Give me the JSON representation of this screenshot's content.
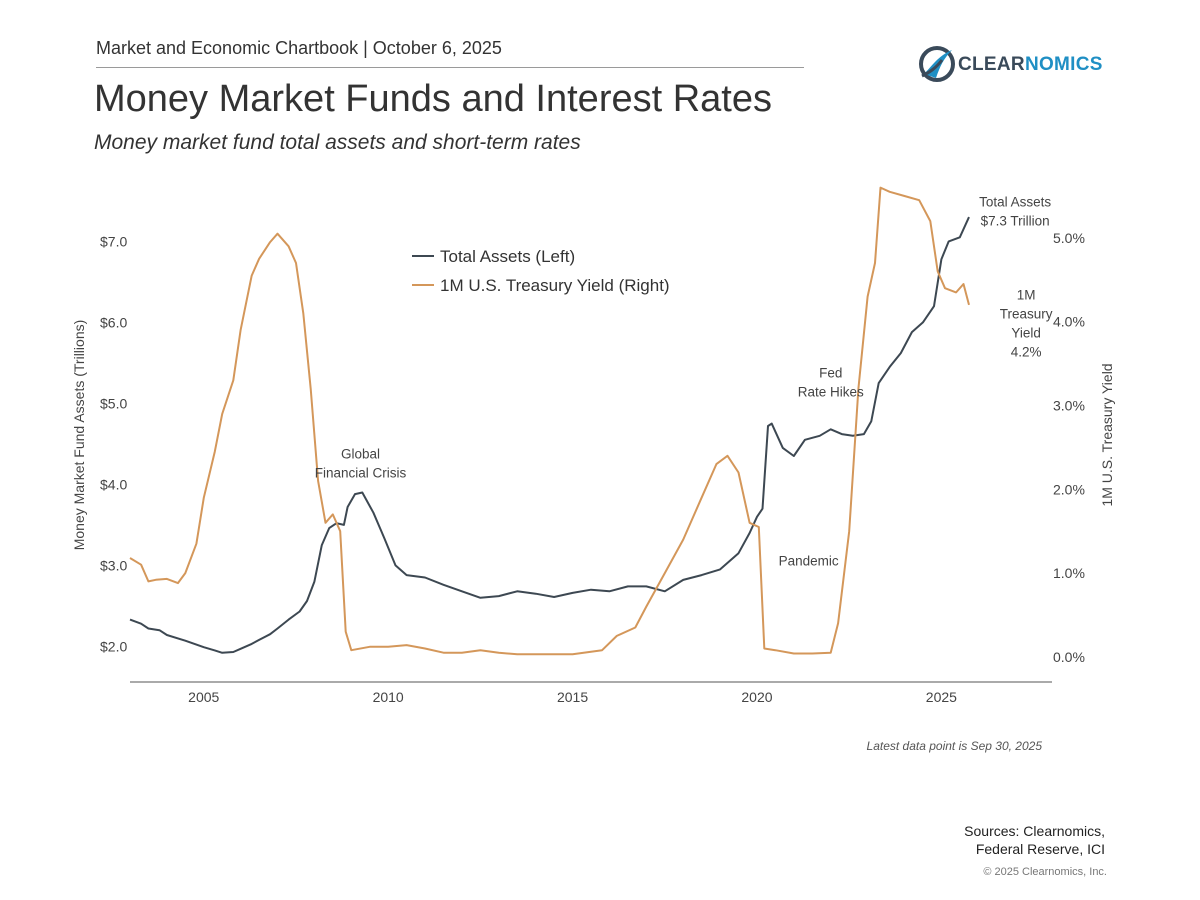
{
  "header": {
    "chartbook": "Market and Economic Chartbook | October 6, 2025",
    "logo_text_1": "CLEAR",
    "logo_text_2": "NOMICS",
    "logo_icon": "clearnomics-swoosh-icon"
  },
  "title": "Money Market Funds and Interest Rates",
  "subtitle": "Money market fund total assets and short-term rates",
  "colors": {
    "assets": "#3d4852",
    "yield": "#d4975a",
    "axis": "#555555",
    "text": "#444444"
  },
  "chart_data": {
    "type": "line",
    "xlim": [
      2003.0,
      2028.0
    ],
    "x_ticks": [
      2005,
      2010,
      2015,
      2020,
      2025
    ],
    "x_tick_labels": [
      "2005",
      "2010",
      "2015",
      "2020",
      "2025"
    ],
    "left_axis": {
      "label": "Money Market Fund Assets (Trillions)",
      "ylim": [
        1.56,
        7.56
      ],
      "ticks": [
        2,
        3,
        4,
        5,
        6,
        7
      ],
      "tick_labels": [
        "$2.0",
        "$3.0",
        "$4.0",
        "$5.0",
        "$6.0",
        "$7.0"
      ]
    },
    "right_axis": {
      "label": "1M U.S. Treasury Yield",
      "ylim": [
        -0.3,
        5.5
      ],
      "ticks": [
        0,
        1,
        2,
        3,
        4,
        5
      ],
      "tick_labels": [
        "0.0%",
        "1.0%",
        "2.0%",
        "3.0%",
        "4.0%",
        "5.0%"
      ]
    },
    "grid": false,
    "legend": {
      "position": "top-center",
      "entries": [
        "Total Assets (Left)",
        "1M U.S. Treasury Yield (Right)"
      ]
    },
    "series": [
      {
        "name": "Total Assets (Left)",
        "axis": "left",
        "points": [
          [
            2003.0,
            2.33
          ],
          [
            2003.3,
            2.28
          ],
          [
            2003.5,
            2.22
          ],
          [
            2003.8,
            2.2
          ],
          [
            2004.0,
            2.14
          ],
          [
            2004.5,
            2.07
          ],
          [
            2005.0,
            1.99
          ],
          [
            2005.3,
            1.95
          ],
          [
            2005.5,
            1.92
          ],
          [
            2005.8,
            1.93
          ],
          [
            2006.0,
            1.97
          ],
          [
            2006.3,
            2.03
          ],
          [
            2006.5,
            2.08
          ],
          [
            2006.8,
            2.15
          ],
          [
            2007.0,
            2.22
          ],
          [
            2007.3,
            2.33
          ],
          [
            2007.6,
            2.43
          ],
          [
            2007.8,
            2.56
          ],
          [
            2008.0,
            2.8
          ],
          [
            2008.2,
            3.25
          ],
          [
            2008.4,
            3.46
          ],
          [
            2008.6,
            3.52
          ],
          [
            2008.8,
            3.5
          ],
          [
            2008.9,
            3.72
          ],
          [
            2009.1,
            3.88
          ],
          [
            2009.3,
            3.9
          ],
          [
            2009.6,
            3.65
          ],
          [
            2009.9,
            3.33
          ],
          [
            2010.2,
            3.0
          ],
          [
            2010.5,
            2.88
          ],
          [
            2011.0,
            2.85
          ],
          [
            2011.5,
            2.76
          ],
          [
            2012.0,
            2.68
          ],
          [
            2012.5,
            2.6
          ],
          [
            2013.0,
            2.62
          ],
          [
            2013.5,
            2.68
          ],
          [
            2014.0,
            2.65
          ],
          [
            2014.5,
            2.61
          ],
          [
            2015.0,
            2.66
          ],
          [
            2015.5,
            2.7
          ],
          [
            2016.0,
            2.68
          ],
          [
            2016.5,
            2.74
          ],
          [
            2017.0,
            2.74
          ],
          [
            2017.5,
            2.68
          ],
          [
            2018.0,
            2.82
          ],
          [
            2018.5,
            2.88
          ],
          [
            2019.0,
            2.95
          ],
          [
            2019.5,
            3.15
          ],
          [
            2019.8,
            3.4
          ],
          [
            2020.0,
            3.6
          ],
          [
            2020.15,
            3.7
          ],
          [
            2020.3,
            4.72
          ],
          [
            2020.4,
            4.75
          ],
          [
            2020.7,
            4.45
          ],
          [
            2021.0,
            4.35
          ],
          [
            2021.3,
            4.55
          ],
          [
            2021.7,
            4.6
          ],
          [
            2022.0,
            4.68
          ],
          [
            2022.3,
            4.62
          ],
          [
            2022.6,
            4.6
          ],
          [
            2022.9,
            4.62
          ],
          [
            2023.1,
            4.78
          ],
          [
            2023.3,
            5.25
          ],
          [
            2023.6,
            5.45
          ],
          [
            2023.9,
            5.62
          ],
          [
            2024.2,
            5.88
          ],
          [
            2024.5,
            6.0
          ],
          [
            2024.8,
            6.2
          ],
          [
            2025.0,
            6.78
          ],
          [
            2025.2,
            7.0
          ],
          [
            2025.5,
            7.05
          ],
          [
            2025.75,
            7.3
          ]
        ]
      },
      {
        "name": "1M U.S. Treasury Yield (Right)",
        "axis": "right",
        "points": [
          [
            2003.0,
            1.18
          ],
          [
            2003.3,
            1.1
          ],
          [
            2003.5,
            0.9
          ],
          [
            2003.7,
            0.92
          ],
          [
            2004.0,
            0.93
          ],
          [
            2004.3,
            0.88
          ],
          [
            2004.5,
            1.0
          ],
          [
            2004.8,
            1.35
          ],
          [
            2005.0,
            1.9
          ],
          [
            2005.3,
            2.45
          ],
          [
            2005.5,
            2.9
          ],
          [
            2005.8,
            3.3
          ],
          [
            2006.0,
            3.9
          ],
          [
            2006.3,
            4.55
          ],
          [
            2006.5,
            4.75
          ],
          [
            2006.8,
            4.95
          ],
          [
            2007.0,
            5.05
          ],
          [
            2007.3,
            4.9
          ],
          [
            2007.5,
            4.7
          ],
          [
            2007.7,
            4.1
          ],
          [
            2007.9,
            3.2
          ],
          [
            2008.1,
            2.1
          ],
          [
            2008.3,
            1.6
          ],
          [
            2008.5,
            1.7
          ],
          [
            2008.7,
            1.5
          ],
          [
            2008.85,
            0.3
          ],
          [
            2009.0,
            0.08
          ],
          [
            2009.5,
            0.12
          ],
          [
            2010.0,
            0.12
          ],
          [
            2010.5,
            0.14
          ],
          [
            2011.0,
            0.1
          ],
          [
            2011.5,
            0.05
          ],
          [
            2012.0,
            0.05
          ],
          [
            2012.5,
            0.08
          ],
          [
            2013.0,
            0.05
          ],
          [
            2013.5,
            0.03
          ],
          [
            2014.0,
            0.03
          ],
          [
            2014.5,
            0.03
          ],
          [
            2015.0,
            0.03
          ],
          [
            2015.8,
            0.08
          ],
          [
            2016.2,
            0.25
          ],
          [
            2016.7,
            0.35
          ],
          [
            2017.0,
            0.6
          ],
          [
            2017.5,
            1.0
          ],
          [
            2018.0,
            1.4
          ],
          [
            2018.5,
            1.9
          ],
          [
            2018.9,
            2.3
          ],
          [
            2019.2,
            2.4
          ],
          [
            2019.5,
            2.2
          ],
          [
            2019.8,
            1.6
          ],
          [
            2020.05,
            1.55
          ],
          [
            2020.2,
            0.1
          ],
          [
            2020.5,
            0.08
          ],
          [
            2021.0,
            0.04
          ],
          [
            2021.5,
            0.04
          ],
          [
            2022.0,
            0.05
          ],
          [
            2022.2,
            0.4
          ],
          [
            2022.5,
            1.5
          ],
          [
            2022.75,
            3.2
          ],
          [
            2023.0,
            4.3
          ],
          [
            2023.2,
            4.7
          ],
          [
            2023.35,
            5.6
          ],
          [
            2023.6,
            5.55
          ],
          [
            2024.0,
            5.5
          ],
          [
            2024.4,
            5.45
          ],
          [
            2024.7,
            5.2
          ],
          [
            2024.9,
            4.6
          ],
          [
            2025.1,
            4.4
          ],
          [
            2025.4,
            4.35
          ],
          [
            2025.6,
            4.45
          ],
          [
            2025.75,
            4.2
          ]
        ]
      }
    ],
    "annotations": [
      {
        "id": "gfc",
        "lines": [
          "Global",
          "Financial Crisis"
        ],
        "x": 2009.25,
        "y_left": 4.32,
        "axis": "left",
        "anchor": "middle",
        "color": "#444444"
      },
      {
        "id": "pandemic",
        "lines": [
          "Pandemic"
        ],
        "x": 2021.4,
        "y_left": 3.0,
        "axis": "left",
        "anchor": "middle",
        "color": "#444444"
      },
      {
        "id": "fed",
        "lines": [
          "Fed",
          "Rate Hikes"
        ],
        "x": 2022.0,
        "y_left": 5.32,
        "axis": "left",
        "anchor": "middle",
        "color": "#444444"
      },
      {
        "id": "assets-end",
        "lines": [
          "Total Assets",
          "$7.3 Trillion"
        ],
        "x": 2027.0,
        "y_left": 7.43,
        "axis": "left",
        "anchor": "middle",
        "color": "#444444"
      },
      {
        "id": "yield-end",
        "lines": [
          "1M",
          "Treasury",
          "Yield",
          "4.2%"
        ],
        "x": 2027.3,
        "y_left": 6.28,
        "axis": "left",
        "anchor": "middle",
        "color": "#444444"
      }
    ]
  },
  "footer": {
    "latest_note": "Latest data point is Sep 30, 2025",
    "sources_line1": "Sources: Clearnomics,",
    "sources_line2": "Federal Reserve, ICI",
    "copyright": "© 2025 Clearnomics, Inc."
  }
}
